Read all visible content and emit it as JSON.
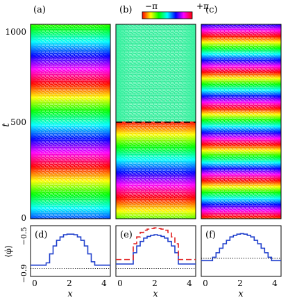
{
  "figure": {
    "panel_labels": [
      "(a)",
      "(b)",
      "(c)",
      "(d)",
      "(e)",
      "(f)"
    ],
    "colorbar": {
      "min_label": "−π",
      "max_label": "+π"
    },
    "top_ylabel": "t",
    "top_yticks": [
      "0",
      "500",
      "1000"
    ],
    "bottom_ylabel": "⟨φ̇⟩",
    "bottom_yticks": [
      "−0.9",
      "−0.5"
    ],
    "xlabel": "x",
    "xticks": [
      "0",
      "2",
      "4"
    ]
  },
  "chart_data": [
    {
      "type": "heatmap",
      "panel": "(a)",
      "ylabel": "t",
      "ylim": [
        0,
        1000
      ],
      "colormap": "phase (hue) from −π to +π"
    },
    {
      "type": "heatmap",
      "panel": "(b)",
      "ylim": [
        0,
        1000
      ],
      "colormap": "phase (hue) from −π to +π",
      "dashed_line_t": 500
    },
    {
      "type": "heatmap",
      "panel": "(c)",
      "ylim": [
        0,
        1000
      ],
      "colormap": "phase (hue) from −π to +π"
    },
    {
      "type": "line",
      "panel": "(d)",
      "xlim": [
        0,
        4.6
      ],
      "ylim": [
        -0.95,
        -0.5
      ],
      "xlabel": "x",
      "series": [
        {
          "style": "solid",
          "color": "#1f3fcc",
          "x": [
            0,
            0.25,
            0.5,
            0.7,
            0.9,
            1.1,
            1.3,
            1.5,
            1.7,
            1.9,
            2.1,
            2.3,
            2.5,
            2.7,
            2.9,
            3.1,
            3.3,
            3.5,
            3.7,
            3.9,
            4.1,
            4.6
          ],
          "y": [
            -0.85,
            -0.85,
            -0.85,
            -0.85,
            -0.83,
            -0.75,
            -0.68,
            -0.63,
            -0.6,
            -0.58,
            -0.575,
            -0.575,
            -0.58,
            -0.6,
            -0.63,
            -0.68,
            -0.75,
            -0.82,
            -0.85,
            -0.85,
            -0.85,
            -0.85
          ]
        },
        {
          "style": "dotted",
          "color": "#000000",
          "x": [
            0,
            4.6
          ],
          "y": [
            -0.88,
            -0.88
          ]
        }
      ]
    },
    {
      "type": "line",
      "panel": "(e)",
      "xlim": [
        0,
        4.6
      ],
      "ylim": [
        -0.95,
        -0.5
      ],
      "xlabel": "x",
      "series": [
        {
          "style": "solid",
          "color": "#1f3fcc",
          "x": [
            0,
            0.3,
            0.6,
            0.8,
            1.0,
            1.2,
            1.4,
            1.6,
            1.8,
            2.0,
            2.2,
            2.4,
            2.6,
            2.8,
            3.0,
            3.2,
            3.4,
            3.6,
            3.8,
            4.1,
            4.6
          ],
          "y": [
            -0.84,
            -0.84,
            -0.84,
            -0.84,
            -0.74,
            -0.68,
            -0.64,
            -0.61,
            -0.595,
            -0.585,
            -0.58,
            -0.585,
            -0.595,
            -0.61,
            -0.64,
            -0.68,
            -0.74,
            -0.84,
            -0.84,
            -0.84,
            -0.84
          ]
        },
        {
          "style": "dashed",
          "color": "#e02020",
          "x": [
            0,
            0.3,
            0.6,
            0.8,
            1.0,
            1.2,
            1.4,
            1.6,
            1.8,
            2.0,
            2.2,
            2.4,
            2.6,
            2.8,
            3.0,
            3.2,
            3.4,
            3.6,
            3.8,
            4.1,
            4.6
          ],
          "y": [
            -0.8,
            -0.8,
            -0.8,
            -0.8,
            -0.66,
            -0.6,
            -0.56,
            -0.54,
            -0.53,
            -0.525,
            -0.52,
            -0.525,
            -0.53,
            -0.54,
            -0.56,
            -0.6,
            -0.66,
            -0.8,
            -0.8,
            -0.8,
            -0.8
          ]
        },
        {
          "style": "dotted",
          "color": "#000000",
          "x": [
            0,
            4.6
          ],
          "y": [
            -0.88,
            -0.88
          ]
        }
      ]
    },
    {
      "type": "line",
      "panel": "(f)",
      "xlim": [
        0,
        4.6
      ],
      "ylim": [
        -0.95,
        -0.5
      ],
      "xlabel": "x",
      "series": [
        {
          "style": "solid",
          "color": "#1f3fcc",
          "x": [
            0,
            0.25,
            0.45,
            0.65,
            0.85,
            1.05,
            1.25,
            1.45,
            1.65,
            1.85,
            2.05,
            2.25,
            2.45,
            2.65,
            2.85,
            3.05,
            3.25,
            3.45,
            3.65,
            3.85,
            4.05,
            4.25,
            4.6
          ],
          "y": [
            -0.81,
            -0.81,
            -0.81,
            -0.78,
            -0.74,
            -0.7,
            -0.66,
            -0.63,
            -0.6,
            -0.585,
            -0.575,
            -0.57,
            -0.575,
            -0.585,
            -0.6,
            -0.63,
            -0.66,
            -0.7,
            -0.74,
            -0.78,
            -0.81,
            -0.81,
            -0.81
          ]
        },
        {
          "style": "dotted",
          "color": "#000000",
          "x": [
            0,
            4.6
          ],
          "y": [
            -0.79,
            -0.79
          ]
        }
      ]
    }
  ]
}
